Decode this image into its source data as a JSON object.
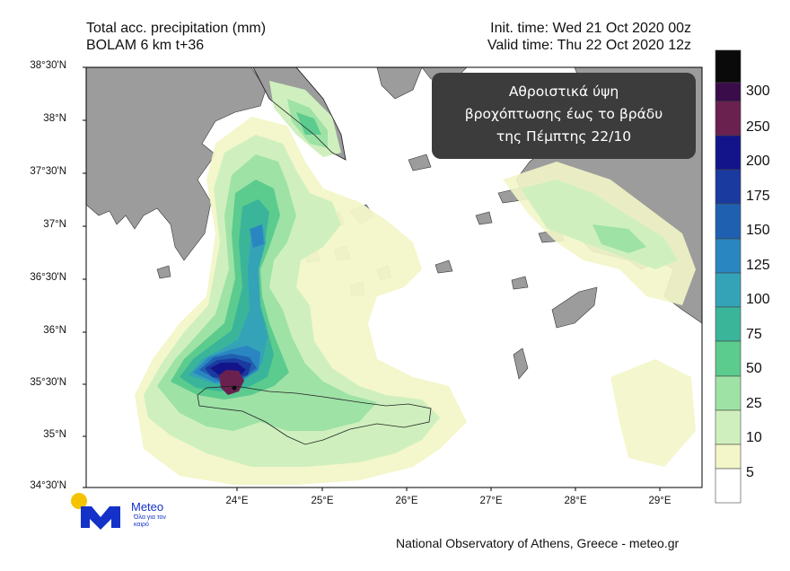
{
  "header": {
    "title_line1": "Total acc. precipitation (mm)",
    "title_line2": "BOLAM 6 km t+36",
    "init_time": "Init. time: Wed 21 Oct 2020 00z",
    "valid_time": "Valid time: Thu 22 Oct 2020 12z"
  },
  "annotation": {
    "line1": "Αθροιστικά ύψη",
    "line2": "βροχόπτωσης έως το βράδυ",
    "line3": "της Πέμπτης 22/10"
  },
  "lat_labels": [
    "38°30'N",
    "38°N",
    "37°30'N",
    "37°N",
    "36°30'N",
    "36°N",
    "35°30'N",
    "35°N",
    "34°30'N"
  ],
  "lon_labels": [
    "24°E",
    "25°E",
    "26°E",
    "27°E",
    "28°E",
    "29°E"
  ],
  "colorbar": {
    "labels": [
      "300",
      "250",
      "200",
      "175",
      "150",
      "125",
      "100",
      "75",
      "50",
      "25",
      "10",
      "5"
    ],
    "colors": [
      "#0a0a0a",
      "#3a0c4a",
      "#6a2150",
      "#14148a",
      "#1a3aa0",
      "#2060b0",
      "#2a86c0",
      "#34a3b8",
      "#3bb59a",
      "#5ccb8e",
      "#9ee2a6",
      "#cff0be",
      "#f3f6c8",
      "#ffffff"
    ]
  },
  "colors": {
    "land": "#9c9c9c",
    "sea": "#ffffff",
    "accent": "#1431c8"
  },
  "logo": {
    "name": "Meteo",
    "tagline": "Όλα για τον καιρό"
  },
  "credit": "National Observatory of Athens, Greece - meteo.gr"
}
